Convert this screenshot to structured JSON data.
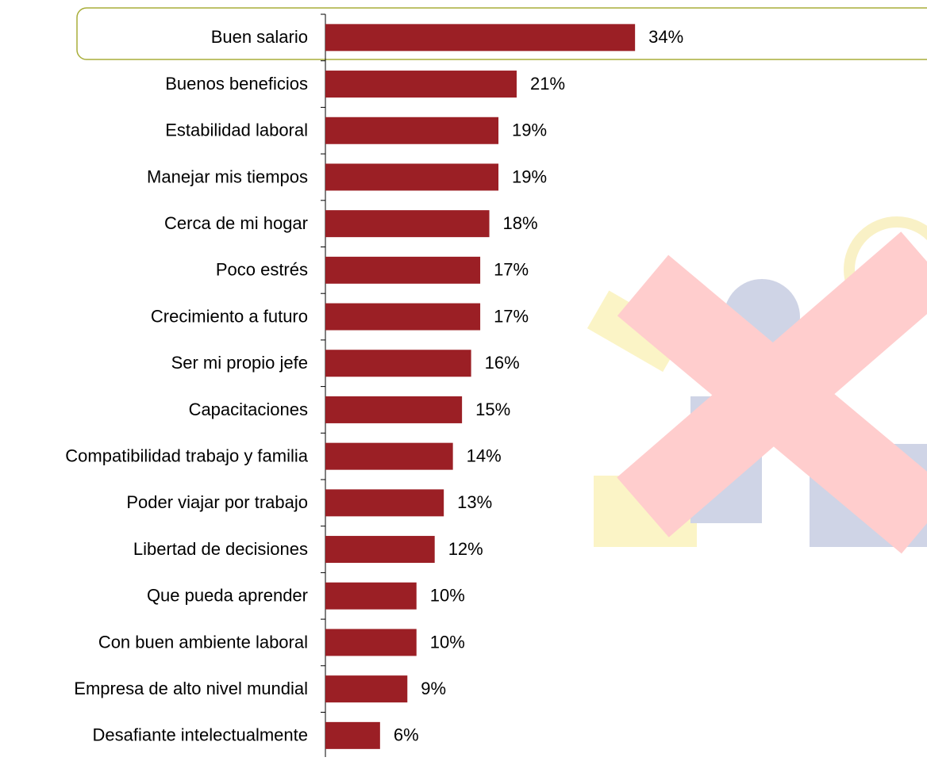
{
  "chart_data": {
    "type": "bar",
    "orientation": "horizontal",
    "categories": [
      "Buen salario",
      "Buenos beneficios",
      "Estabilidad laboral",
      "Manejar mis tiempos",
      "Cerca de mi hogar",
      "Poco estrés",
      "Crecimiento a futuro",
      "Ser mi propio jefe",
      "Capacitaciones",
      "Compatibilidad trabajo y familia",
      "Poder viajar por trabajo",
      "Libertad de decisiones",
      "Que pueda aprender",
      "Con buen ambiente laboral",
      "Empresa de alto nivel mundial",
      "Desafiante intelectualmente"
    ],
    "values": [
      34,
      21,
      19,
      19,
      18,
      17,
      17,
      16,
      15,
      14,
      13,
      12,
      10,
      10,
      9,
      6
    ],
    "value_labels": [
      "34%",
      "21%",
      "19%",
      "19%",
      "18%",
      "17%",
      "17%",
      "16%",
      "15%",
      "14%",
      "13%",
      "12%",
      "10%",
      "10%",
      "9%",
      "6%"
    ],
    "color": "#9b1f25",
    "xlim": [
      0,
      40
    ]
  }
}
